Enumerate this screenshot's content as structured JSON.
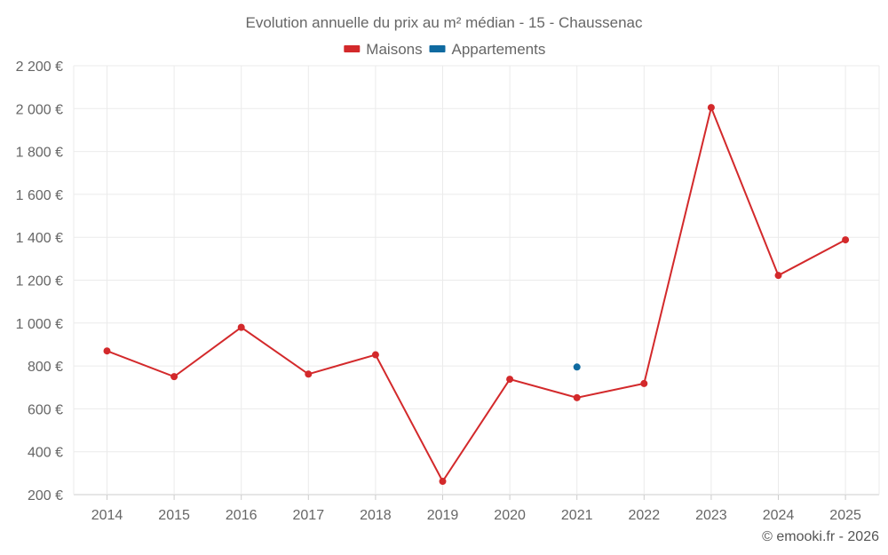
{
  "chart_data": {
    "type": "line",
    "title": "Evolution annuelle du prix au m² médian - 15 - Chaussenac",
    "categories": [
      "2014",
      "2015",
      "2016",
      "2017",
      "2018",
      "2019",
      "2020",
      "2021",
      "2022",
      "2023",
      "2024",
      "2025"
    ],
    "series": [
      {
        "name": "Maisons",
        "color": "#d3292b",
        "values": [
          870,
          750,
          980,
          762,
          852,
          262,
          738,
          652,
          718,
          2005,
          1222,
          1388
        ]
      },
      {
        "name": "Appartements",
        "color": "#0f6aa0",
        "values": [
          null,
          null,
          null,
          null,
          null,
          null,
          null,
          795,
          null,
          null,
          null,
          null
        ]
      }
    ],
    "ylim": [
      200,
      2200
    ],
    "yticks": [
      200,
      400,
      600,
      800,
      1000,
      1200,
      1400,
      1600,
      1800,
      2000,
      2200
    ],
    "ytick_labels": [
      "200 €",
      "400 €",
      "600 €",
      "800 €",
      "1 000 €",
      "1 200 €",
      "1 400 €",
      "1 600 €",
      "1 800 €",
      "2 000 €",
      "2 200 €"
    ],
    "grid": true,
    "legend_position": "top-center",
    "xlabel": "",
    "ylabel": ""
  },
  "credit": "© emooki.fr - 2026"
}
